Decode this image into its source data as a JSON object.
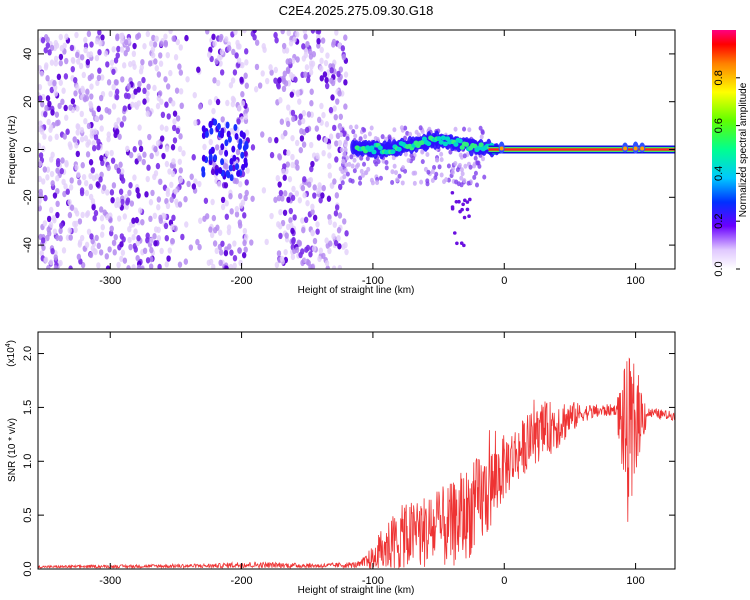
{
  "title": "C2E4.2025.275.09.30.G18",
  "colors": {
    "spectrum_low": "#e8d8fa",
    "spectrum_mid": "#6a10e0",
    "spectrum_hot": "#00e0c0",
    "line_signal": "#ee3333",
    "frame": "#000000"
  },
  "colorbar": {
    "label": "Normalized spectral amplitude",
    "range": [
      0.0,
      1.0
    ],
    "ticks": [
      "0.0",
      "0.2",
      "0.4",
      "0.6",
      "0.8"
    ],
    "tick_values": [
      0.0,
      0.2,
      0.4,
      0.6,
      0.8
    ]
  },
  "chart_data": [
    {
      "type": "heatmap",
      "title": "C2E4.2025.275.09.30.G18",
      "xlabel": "Height of straight line (km)",
      "ylabel": "Frequency (Hz)",
      "xlim": [
        -355,
        130
      ],
      "ylim": [
        -50,
        50
      ],
      "xticks": [
        -300,
        -200,
        -100,
        0,
        100
      ],
      "xtick_labels": [
        "-300",
        "-200",
        "-100",
        "0",
        "100"
      ],
      "yticks": [
        -40,
        -20,
        0,
        20,
        40
      ],
      "ytick_labels": [
        "-40",
        "-20",
        "0",
        "20",
        "40"
      ],
      "noise_region_x": [
        -355,
        -120
      ],
      "signal_band": [
        {
          "x": -110,
          "freq": 1,
          "amp": 0.35
        },
        {
          "x": -90,
          "freq": 0,
          "amp": 0.4
        },
        {
          "x": -70,
          "freq": 2,
          "amp": 0.42
        },
        {
          "x": -55,
          "freq": 4,
          "amp": 0.45
        },
        {
          "x": -40,
          "freq": 3,
          "amp": 0.42
        },
        {
          "x": -20,
          "freq": 1,
          "amp": 0.4
        },
        {
          "x": 0,
          "freq": 0,
          "amp": 0.9
        },
        {
          "x": 50,
          "freq": 0,
          "amp": 0.95
        },
        {
          "x": 100,
          "freq": 0,
          "amp": 0.95
        },
        {
          "x": 130,
          "freq": 0,
          "amp": 0.95
        }
      ]
    },
    {
      "type": "line",
      "xlabel": "Height of straight line (km)",
      "ylabel": "SNR (10 * v/v)",
      "multiplier_label": "(x10",
      "multiplier_exp": "4",
      "multiplier_close": ")",
      "xlim": [
        -355,
        130
      ],
      "ylim": [
        0.0,
        2.2
      ],
      "xticks": [
        -300,
        -200,
        -100,
        0,
        100
      ],
      "xtick_labels": [
        "-300",
        "-200",
        "-100",
        "0",
        "100"
      ],
      "yticks": [
        0.0,
        0.5,
        1.0,
        1.5,
        2.0
      ],
      "ytick_labels": [
        "0.0",
        "0.5",
        "1.0",
        "1.5",
        "2.0"
      ],
      "envelope": [
        {
          "x": -355,
          "mean": 0.02,
          "amp": 0.01
        },
        {
          "x": -220,
          "mean": 0.03,
          "amp": 0.02
        },
        {
          "x": -200,
          "mean": 0.04,
          "amp": 0.03
        },
        {
          "x": -140,
          "mean": 0.03,
          "amp": 0.02
        },
        {
          "x": -110,
          "mean": 0.04,
          "amp": 0.03
        },
        {
          "x": -100,
          "mean": 0.1,
          "amp": 0.12
        },
        {
          "x": -90,
          "mean": 0.2,
          "amp": 0.25
        },
        {
          "x": -80,
          "mean": 0.28,
          "amp": 0.3
        },
        {
          "x": -60,
          "mean": 0.35,
          "amp": 0.35
        },
        {
          "x": -40,
          "mean": 0.4,
          "amp": 0.4
        },
        {
          "x": -20,
          "mean": 0.6,
          "amp": 0.45
        },
        {
          "x": -10,
          "mean": 0.75,
          "amp": 0.4
        },
        {
          "x": 0,
          "mean": 0.95,
          "amp": 0.3
        },
        {
          "x": 20,
          "mean": 1.2,
          "amp": 0.25
        },
        {
          "x": 40,
          "mean": 1.35,
          "amp": 0.25
        },
        {
          "x": 60,
          "mean": 1.45,
          "amp": 0.08
        },
        {
          "x": 85,
          "mean": 1.48,
          "amp": 0.05
        },
        {
          "x": 90,
          "mean": 1.35,
          "amp": 0.5
        },
        {
          "x": 96,
          "mean": 1.1,
          "amp": 0.9
        },
        {
          "x": 100,
          "mean": 1.4,
          "amp": 0.5
        },
        {
          "x": 110,
          "mean": 1.45,
          "amp": 0.05
        },
        {
          "x": 130,
          "mean": 1.42,
          "amp": 0.04
        }
      ]
    }
  ]
}
